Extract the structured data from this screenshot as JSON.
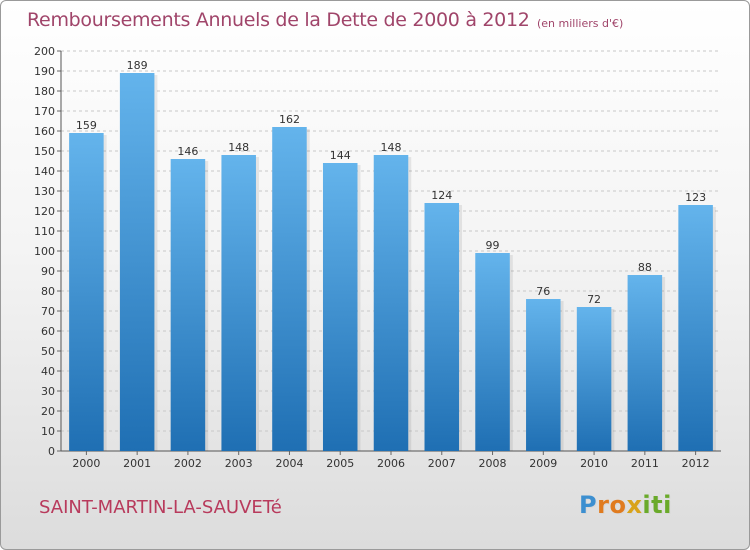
{
  "header": {
    "title": "Remboursements Annuels de la Dette de 2000 à 2012",
    "subtitle": "(en milliers d'€)"
  },
  "footer": {
    "commune": "SAINT-MARTIN-LA-SAUVETé",
    "logo_letters": [
      "P",
      "r",
      "o",
      "x",
      "i",
      "t",
      "i"
    ]
  },
  "colors": {
    "title": "#a0456a",
    "bar_top": "#64b4ec",
    "bar_bottom": "#1f6fb3",
    "grid": "#c8c8c8"
  },
  "chart_data": {
    "type": "bar",
    "title": "Remboursements Annuels de la Dette de 2000 à 2012",
    "subtitle": "(en milliers d'€)",
    "categories": [
      "2000",
      "2001",
      "2002",
      "2003",
      "2004",
      "2005",
      "2006",
      "2007",
      "2008",
      "2009",
      "2010",
      "2011",
      "2012"
    ],
    "values": [
      159,
      189,
      146,
      148,
      162,
      144,
      148,
      124,
      99,
      76,
      72,
      88,
      123
    ],
    "ylim": [
      0,
      200
    ],
    "ytick_step": 10,
    "grid": true,
    "data_labels": true,
    "xlabel": "",
    "ylabel": ""
  }
}
